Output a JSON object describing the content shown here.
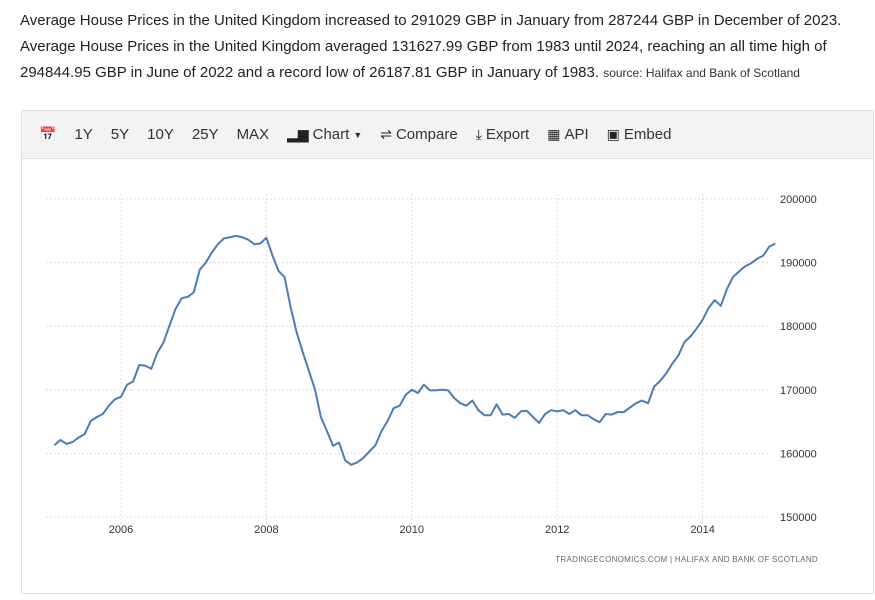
{
  "description": {
    "text": "Average House Prices in the United Kingdom increased to 291029 GBP in January from 287244 GBP in December of 2023. Average House Prices in the United Kingdom averaged 131627.99 GBP from 1983 until 2024, reaching an all time high of 294844.95 GBP in June of 2022 and a record low of 26187.81 GBP in January of 1983.",
    "source": "source: Halifax and Bank of Scotland"
  },
  "toolbar": {
    "calendar_icon": "calendar-icon",
    "ranges": [
      "1Y",
      "5Y",
      "10Y",
      "25Y",
      "MAX"
    ],
    "chart_label": "Chart",
    "compare_label": "Compare",
    "export_label": "Export",
    "api_label": "API",
    "embed_label": "Embed"
  },
  "chart_data": {
    "type": "line",
    "line_color": "#4a7eb0",
    "grid": true,
    "y_axis_side": "right",
    "ylim": [
      150000,
      200000
    ],
    "yticks": [
      "150000",
      "160000",
      "170000",
      "180000",
      "190000",
      "200000"
    ],
    "xticks": [
      "2006",
      "2008",
      "2010",
      "2012",
      "2014"
    ],
    "credit": "TRADINGECONOMICS.COM | HALIFAX AND BANK OF SCOTLAND",
    "x": [
      "2005-02",
      "2005-03",
      "2005-04",
      "2005-05",
      "2005-06",
      "2005-07",
      "2005-08",
      "2005-09",
      "2005-10",
      "2005-11",
      "2005-12",
      "2006-01",
      "2006-02",
      "2006-03",
      "2006-04",
      "2006-05",
      "2006-06",
      "2006-07",
      "2006-08",
      "2006-09",
      "2006-10",
      "2006-11",
      "2006-12",
      "2007-01",
      "2007-02",
      "2007-03",
      "2007-04",
      "2007-05",
      "2007-06",
      "2007-07",
      "2007-08",
      "2007-09",
      "2007-10",
      "2007-11",
      "2007-12",
      "2008-01",
      "2008-02",
      "2008-03",
      "2008-04",
      "2008-05",
      "2008-06",
      "2008-07",
      "2008-08",
      "2008-09",
      "2008-10",
      "2008-11",
      "2008-12",
      "2009-01",
      "2009-02",
      "2009-03",
      "2009-04",
      "2009-05",
      "2009-06",
      "2009-07",
      "2009-08",
      "2009-09",
      "2009-10",
      "2009-11",
      "2009-12",
      "2010-01",
      "2010-02",
      "2010-03",
      "2010-04",
      "2010-05",
      "2010-06",
      "2010-07",
      "2010-08",
      "2010-09",
      "2010-10",
      "2010-11",
      "2010-12",
      "2011-01",
      "2011-02",
      "2011-03",
      "2011-04",
      "2011-05",
      "2011-06",
      "2011-07",
      "2011-08",
      "2011-09",
      "2011-10",
      "2011-11",
      "2011-12",
      "2012-01",
      "2012-02",
      "2012-03",
      "2012-04",
      "2012-05",
      "2012-06",
      "2012-07",
      "2012-08",
      "2012-09",
      "2012-10",
      "2012-11",
      "2012-12",
      "2013-01",
      "2013-02",
      "2013-03",
      "2013-04",
      "2013-05",
      "2013-06",
      "2013-07",
      "2013-08",
      "2013-09",
      "2013-10",
      "2013-11",
      "2013-12",
      "2014-01",
      "2014-02",
      "2014-03",
      "2014-04",
      "2014-05",
      "2014-06",
      "2014-07",
      "2014-08",
      "2014-09",
      "2014-10",
      "2014-11",
      "2014-12",
      "2015-01"
    ],
    "values": [
      161300,
      162100,
      161500,
      161800,
      162500,
      163000,
      165100,
      165700,
      166200,
      167500,
      168500,
      168900,
      170800,
      171300,
      173900,
      173800,
      173300,
      175800,
      177400,
      180100,
      182700,
      184400,
      184600,
      185300,
      188900,
      190000,
      191600,
      192900,
      193800,
      194000,
      194200,
      194000,
      193600,
      192900,
      193000,
      193900,
      191100,
      188700,
      187700,
      183000,
      179000,
      175900,
      173000,
      170100,
      165700,
      163500,
      161200,
      161700,
      158900,
      158200,
      158600,
      159300,
      160300,
      161300,
      163500,
      165100,
      167100,
      167500,
      169200,
      170000,
      169500,
      170800,
      169900,
      169900,
      170000,
      169900,
      168700,
      167900,
      167500,
      168300,
      166800,
      166000,
      166000,
      167700,
      166100,
      166200,
      165600,
      166600,
      166700,
      165700,
      164800,
      166200,
      166800,
      166600,
      166800,
      166200,
      166800,
      166000,
      166000,
      165400,
      164900,
      166200,
      166100,
      166500,
      166500,
      167200,
      167900,
      168300,
      167900,
      170500,
      171400,
      172600,
      174100,
      175400,
      177500,
      178400,
      179600,
      181000,
      182900,
      184100,
      183200,
      185800,
      187700,
      188600,
      189400,
      189900,
      190600,
      191100,
      192500,
      193000
    ]
  }
}
